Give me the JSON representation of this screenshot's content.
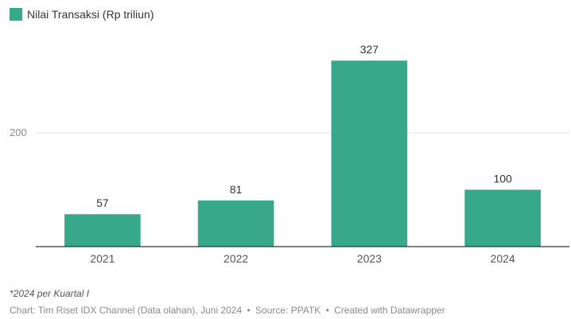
{
  "chart_data": {
    "type": "bar",
    "categories": [
      "2021",
      "2022",
      "2023",
      "2024"
    ],
    "series": [
      {
        "name": "Nilai Transaksi (Rp triliun)",
        "values": [
          57,
          81,
          327,
          100
        ],
        "color": "#38a88a"
      }
    ],
    "data_labels": [
      "57",
      "81",
      "327",
      "100"
    ],
    "y_ticks": [
      200
    ],
    "ylim": [
      0,
      400
    ],
    "grid": true,
    "legend_position": "top-left"
  },
  "footnote": "*2024 per Kuartal I",
  "credit": {
    "chart": "Chart: Tim Riset IDX Channel (Data olahan), Juni 2024",
    "separator": "•",
    "source": "Source: PPATK",
    "created": "Created with Datawrapper"
  }
}
